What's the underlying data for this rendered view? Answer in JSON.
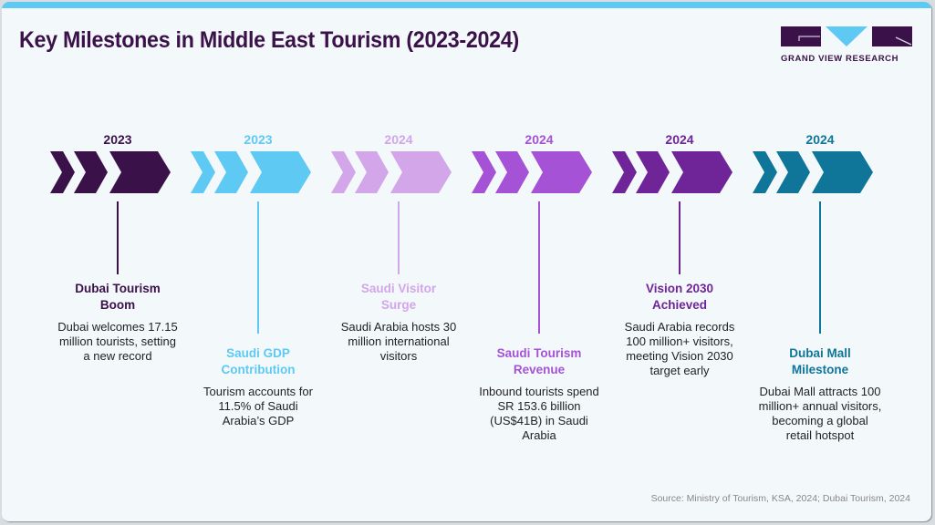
{
  "header": {
    "title": "Key Milestones in Middle East Tourism (2023-2024)",
    "logo_text": "GRAND VIEW RESEARCH"
  },
  "colors": {
    "topbar": "#5ec9f3",
    "title": "#3a1149",
    "background": "#f3f8fb"
  },
  "milestones": [
    {
      "year": "2023",
      "label": "Dubai Tourism Boom",
      "description": "Dubai welcomes 17.15 million tourists, setting a new record",
      "color": "#3a1149",
      "position": "upper"
    },
    {
      "year": "2023",
      "label": "Saudi GDP Contribution",
      "description": "Tourism accounts for 11.5% of Saudi Arabia’s GDP",
      "color": "#5ec9f3",
      "position": "lower"
    },
    {
      "year": "2024",
      "label": "Saudi Visitor Surge",
      "description": "Saudi Arabia hosts 30 million international visitors",
      "color": "#d2a6e8",
      "position": "upper"
    },
    {
      "year": "2024",
      "label": "Saudi Tourism Revenue",
      "description": "Inbound tourists spend SR 153.6 billion (US$41B) in Saudi Arabia",
      "color": "#a552d6",
      "position": "lower"
    },
    {
      "year": "2024",
      "label": "Vision 2030 Achieved",
      "description": "Saudi Arabia records 100 million+ visitors, meeting Vision 2030 target early",
      "color": "#6f2498",
      "position": "upper"
    },
    {
      "year": "2024",
      "label": "Dubai Mall Milestone",
      "description": "Dubai Mall attracts 100 million+ annual visitors, becoming a global retail hotspot",
      "color": "#0f7699",
      "position": "lower"
    }
  ],
  "footer": {
    "source": "Source: Ministry of Tourism, KSA, 2024; Dubai Tourism, 2024"
  }
}
